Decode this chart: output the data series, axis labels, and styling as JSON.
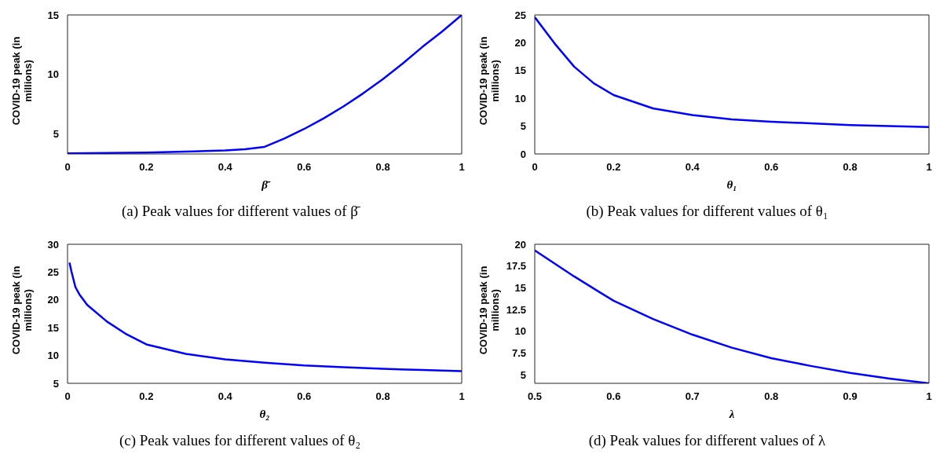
{
  "chart_data": [
    {
      "type": "line",
      "xlabel": "β̄",
      "ylabel": "COVID-19 peak (in millions)",
      "annotations": [
        "(a) Peak values for different values of β̄"
      ],
      "x": [
        0,
        0.1,
        0.2,
        0.3,
        0.4,
        0.45,
        0.5,
        0.55,
        0.6,
        0.65,
        0.7,
        0.75,
        0.8,
        0.85,
        0.9,
        0.95,
        1
      ],
      "series": [
        {
          "color": "#0000ff",
          "values": [
            3.35,
            3.38,
            3.42,
            3.5,
            3.6,
            3.7,
            3.9,
            4.6,
            5.4,
            6.3,
            7.3,
            8.4,
            9.6,
            10.9,
            12.3,
            13.6,
            15
          ]
        }
      ],
      "xlim": [
        0,
        1
      ],
      "ylim": [
        3.3,
        15
      ],
      "xticks": [
        0,
        0.2,
        0.4,
        0.6,
        0.8,
        1
      ],
      "yticks": [
        5,
        10,
        15
      ]
    },
    {
      "type": "line",
      "xlabel": "θ₁",
      "ylabel": "COVID-19 peak (in millions)",
      "annotations": [
        "(b) Peak values for different values of θ₁"
      ],
      "x": [
        0,
        0.05,
        0.1,
        0.15,
        0.2,
        0.3,
        0.4,
        0.5,
        0.6,
        0.7,
        0.8,
        0.9,
        1
      ],
      "series": [
        {
          "color": "#0000ff",
          "values": [
            24.6,
            19.9,
            15.7,
            12.7,
            10.6,
            8.2,
            7.0,
            6.2,
            5.8,
            5.5,
            5.2,
            5.0,
            4.85
          ]
        }
      ],
      "xlim": [
        0,
        1
      ],
      "ylim": [
        0,
        25
      ],
      "xticks": [
        0,
        0.2,
        0.4,
        0.6,
        0.8,
        1
      ],
      "yticks": [
        0,
        5,
        10,
        15,
        20,
        25
      ]
    },
    {
      "type": "line",
      "xlabel": "θ₂",
      "ylabel": "COVID-19 peak (in millions)",
      "annotations": [
        "(c) Peak values for different values of θ₂"
      ],
      "x": [
        0.005,
        0.01,
        0.02,
        0.03,
        0.05,
        0.1,
        0.15,
        0.2,
        0.3,
        0.4,
        0.5,
        0.6,
        0.7,
        0.8,
        0.9,
        1
      ],
      "series": [
        {
          "color": "#0000ff",
          "values": [
            26.7,
            25.1,
            22.3,
            21,
            19.1,
            16.1,
            13.8,
            12.0,
            10.3,
            9.3,
            8.7,
            8.2,
            7.9,
            7.6,
            7.4,
            7.2
          ]
        }
      ],
      "xlim": [
        0,
        1
      ],
      "ylim": [
        5,
        30
      ],
      "xticks": [
        0,
        0.2,
        0.4,
        0.6,
        0.8,
        1
      ],
      "yticks": [
        5,
        10,
        15,
        20,
        25,
        30
      ]
    },
    {
      "type": "line",
      "xlabel": "λ",
      "ylabel": "COVID-19 peak (in millions)",
      "annotations": [
        "(d) Peak values for different values of λ"
      ],
      "x": [
        0.5,
        0.55,
        0.6,
        0.65,
        0.7,
        0.75,
        0.8,
        0.85,
        0.9,
        0.95,
        1
      ],
      "series": [
        {
          "color": "#0000ff",
          "values": [
            19.3,
            16.3,
            13.5,
            11.4,
            9.6,
            8.1,
            6.9,
            6.0,
            5.2,
            4.55,
            4.0
          ]
        }
      ],
      "xlim": [
        0.5,
        1
      ],
      "ylim": [
        4,
        20
      ],
      "xticks": [
        0.5,
        0.6,
        0.7,
        0.8,
        0.9,
        1
      ],
      "yticks": [
        5,
        7.5,
        10,
        12.5,
        15,
        17.5,
        20
      ]
    }
  ]
}
